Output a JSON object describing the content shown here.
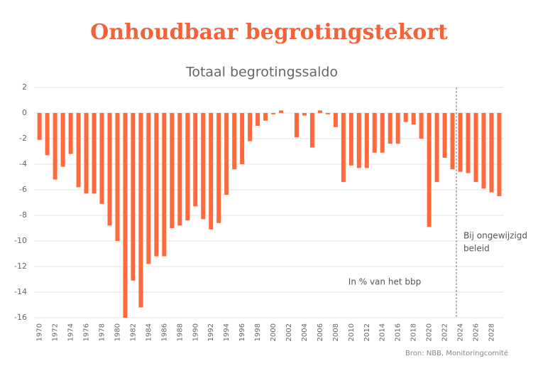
{
  "chart_data": {
    "type": "bar",
    "title": "Onhoudbaar begrotingstekort",
    "subtitle": "Totaal begrotingssaldo",
    "x": [
      1970,
      1971,
      1972,
      1973,
      1974,
      1975,
      1976,
      1977,
      1978,
      1979,
      1980,
      1981,
      1982,
      1983,
      1984,
      1985,
      1986,
      1987,
      1988,
      1989,
      1990,
      1991,
      1992,
      1993,
      1994,
      1995,
      1996,
      1997,
      1998,
      1999,
      2000,
      2001,
      2002,
      2003,
      2004,
      2005,
      2006,
      2007,
      2008,
      2009,
      2010,
      2011,
      2012,
      2013,
      2014,
      2015,
      2016,
      2017,
      2018,
      2019,
      2020,
      2021,
      2022,
      2023,
      2024,
      2025,
      2026,
      2027,
      2028,
      2029
    ],
    "values": [
      -2.1,
      -3.3,
      -5.2,
      -4.2,
      -3.2,
      -5.8,
      -6.3,
      -6.3,
      -7.1,
      -8.8,
      -10.0,
      -16.0,
      -13.1,
      -15.2,
      -11.8,
      -11.2,
      -11.2,
      -9.0,
      -8.8,
      -8.4,
      -7.3,
      -8.3,
      -9.1,
      -8.6,
      -6.4,
      -4.4,
      -4.0,
      -2.2,
      -1.0,
      -0.6,
      -0.1,
      0.2,
      0,
      -1.9,
      -0.2,
      -2.7,
      0.2,
      -0.1,
      -1.1,
      -5.4,
      -4.1,
      -4.3,
      -4.3,
      -3.1,
      -3.1,
      -2.4,
      -2.4,
      -0.7,
      -0.9,
      -2.0,
      -8.9,
      -5.4,
      -3.5,
      -4.4,
      -4.6,
      -4.7,
      -5.4,
      -5.9,
      -6.2,
      -6.5
    ],
    "color": "#ff6a3d",
    "xlim": [
      1969.3,
      2029.6
    ],
    "xticks": [
      1970,
      1972,
      1974,
      1976,
      1978,
      1980,
      1982,
      1984,
      1986,
      1988,
      1990,
      1992,
      1994,
      1996,
      1998,
      2000,
      2002,
      2004,
      2006,
      2008,
      2010,
      2012,
      2014,
      2016,
      2018,
      2020,
      2022,
      2024,
      2026,
      2028
    ],
    "ylim": [
      -16,
      2
    ],
    "yticks": [
      2,
      0,
      -2,
      -4,
      -6,
      -8,
      -10,
      -12,
      -14,
      -16
    ],
    "grid": true,
    "projection_start": 2023.5,
    "projection_label": [
      "Bij ongewijzigd",
      "beleid"
    ],
    "annotation": "In % van het bbp",
    "source": "Bron: NBB, Monitoringcomité"
  }
}
